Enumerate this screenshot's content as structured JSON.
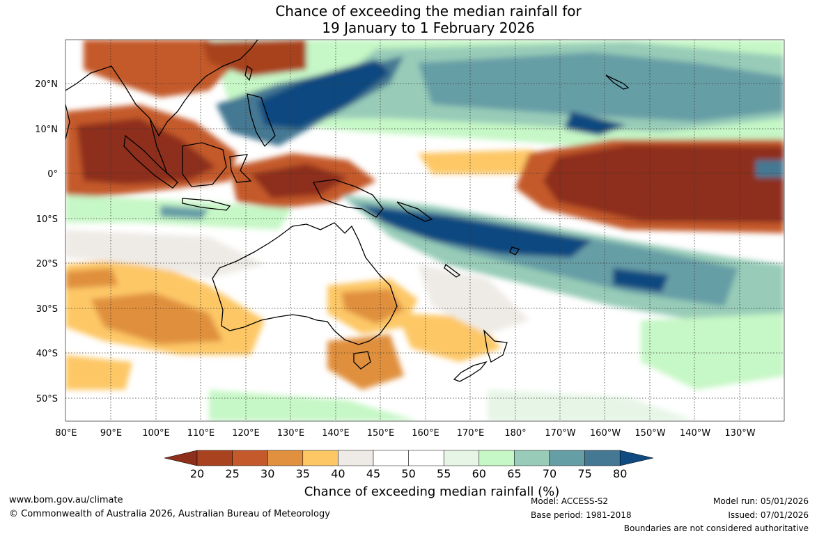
{
  "title": {
    "line1": "Chance of exceeding the median rainfall for",
    "line2": "19 January to 1 February 2026"
  },
  "axes": {
    "lat_labels": [
      "20°N",
      "10°N",
      "0°",
      "10°S",
      "20°S",
      "30°S",
      "40°S",
      "50°S"
    ],
    "lon_labels": [
      "80°E",
      "90°E",
      "100°E",
      "110°E",
      "120°E",
      "130°E",
      "140°E",
      "150°E",
      "160°E",
      "170°E",
      "180°",
      "170°W",
      "160°W",
      "150°W",
      "140°W",
      "130°W"
    ]
  },
  "colorbar": {
    "title": "Chance of exceeding median rainfall (%)",
    "ticks": [
      "20",
      "25",
      "30",
      "35",
      "40",
      "45",
      "50",
      "55",
      "60",
      "65",
      "70",
      "75",
      "80"
    ],
    "colors": [
      "#8e2f1c",
      "#a8421f",
      "#c45a2b",
      "#e0903e",
      "#fdc766",
      "#eeebe6",
      "#ffffff",
      "#ffffff",
      "#e6f5e6",
      "#c6f7c6",
      "#98ccb8",
      "#669ea6",
      "#457893",
      "#0f4a80"
    ]
  },
  "footer": {
    "website": "www.bom.gov.au/climate",
    "copyright": "© Commonwealth of Australia 2026, Australian Bureau of Meteorology",
    "model": "Model: ACCESS-S2",
    "base_period": "Base period: 1981-2018",
    "model_run": "Model run: 05/01/2026",
    "issued": "Issued: 07/01/2026",
    "boundaries": "Boundaries are not considered authoritative"
  }
}
